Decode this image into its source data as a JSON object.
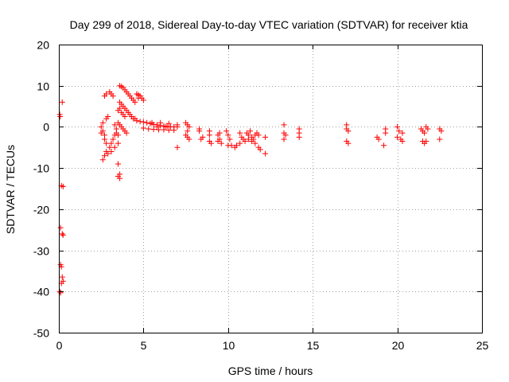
{
  "chart_data": {
    "type": "scatter",
    "title": "Day 299 of 2018, Sidereal Day-to-day VTEC variation (SDTVAR) for receiver ktia",
    "xlabel": "GPS time / hours",
    "ylabel": "SDTVAR / TECUs",
    "xlim": [
      0,
      25
    ],
    "ylim": [
      -50,
      20
    ],
    "xticks": [
      0,
      5,
      10,
      15,
      20,
      25
    ],
    "yticks": [
      -50,
      -40,
      -30,
      -20,
      -10,
      0,
      10,
      20
    ],
    "grid": true,
    "marker": "plus",
    "marker_color": "#ff0000",
    "points": [
      [
        0.05,
        3
      ],
      [
        0.08,
        2.5
      ],
      [
        0.2,
        6
      ],
      [
        0.15,
        -14.3
      ],
      [
        0.25,
        -14.5
      ],
      [
        0.1,
        -24.5
      ],
      [
        0.2,
        -26
      ],
      [
        0.25,
        -26.3
      ],
      [
        0.1,
        -33.5
      ],
      [
        0.15,
        -34
      ],
      [
        0.2,
        -36.5
      ],
      [
        0.25,
        -37.5
      ],
      [
        0.15,
        -38
      ],
      [
        0.05,
        -40
      ],
      [
        0.1,
        -40.3
      ],
      [
        2.5,
        0
      ],
      [
        2.6,
        -1
      ],
      [
        2.7,
        -2
      ],
      [
        2.5,
        -1.5
      ],
      [
        2.6,
        1
      ],
      [
        2.8,
        2
      ],
      [
        2.9,
        2.5
      ],
      [
        2.7,
        -3
      ],
      [
        2.8,
        -4
      ],
      [
        3.0,
        -5
      ],
      [
        3.1,
        -4
      ],
      [
        3.2,
        -3
      ],
      [
        3.3,
        -2
      ],
      [
        3.4,
        -1.5
      ],
      [
        3.5,
        -2
      ],
      [
        2.8,
        -6
      ],
      [
        2.7,
        -7
      ],
      [
        2.6,
        -8
      ],
      [
        2.9,
        -6.5
      ],
      [
        3.1,
        -6
      ],
      [
        3.3,
        -5
      ],
      [
        3.5,
        -4
      ],
      [
        2.7,
        7.5
      ],
      [
        2.8,
        8
      ],
      [
        3.0,
        8.5
      ],
      [
        3.1,
        8
      ],
      [
        3.2,
        7.5
      ],
      [
        3.6,
        10
      ],
      [
        3.7,
        9.8
      ],
      [
        3.8,
        9.5
      ],
      [
        3.9,
        9
      ],
      [
        4.0,
        8.5
      ],
      [
        4.1,
        8
      ],
      [
        4.2,
        7.5
      ],
      [
        4.3,
        7
      ],
      [
        4.4,
        6.5
      ],
      [
        4.5,
        6
      ],
      [
        4.6,
        8
      ],
      [
        4.7,
        7.8
      ],
      [
        4.8,
        7.5
      ],
      [
        4.9,
        7
      ],
      [
        5.0,
        6.5
      ],
      [
        4.7,
        7
      ],
      [
        3.6,
        6
      ],
      [
        3.7,
        5.5
      ],
      [
        3.8,
        5
      ],
      [
        3.9,
        4.5
      ],
      [
        4.0,
        4
      ],
      [
        4.1,
        3.5
      ],
      [
        4.2,
        3
      ],
      [
        4.3,
        2.5
      ],
      [
        4.4,
        2
      ],
      [
        4.5,
        2
      ],
      [
        3.5,
        4
      ],
      [
        3.6,
        4.5
      ],
      [
        3.7,
        3.5
      ],
      [
        3.8,
        3
      ],
      [
        3.9,
        2.5
      ],
      [
        3.5,
        1
      ],
      [
        3.6,
        0.5
      ],
      [
        3.7,
        0
      ],
      [
        3.8,
        -0.5
      ],
      [
        3.9,
        -1
      ],
      [
        4.0,
        -1.5
      ],
      [
        3.4,
        -0.5
      ],
      [
        3.3,
        0.5
      ],
      [
        3.5,
        -9
      ],
      [
        3.5,
        -12
      ],
      [
        3.6,
        -12.5
      ],
      [
        3.6,
        -11.5
      ],
      [
        4.6,
        1.5
      ],
      [
        4.8,
        1.3
      ],
      [
        5.0,
        1.2
      ],
      [
        5.2,
        1
      ],
      [
        5.4,
        0.8
      ],
      [
        5.6,
        0.6
      ],
      [
        5.8,
        0.5
      ],
      [
        6.0,
        0.3
      ],
      [
        6.2,
        0.2
      ],
      [
        6.4,
        0.1
      ],
      [
        6.6,
        0
      ],
      [
        6.8,
        0
      ],
      [
        7.0,
        0
      ],
      [
        5.0,
        -0.3
      ],
      [
        5.3,
        -0.5
      ],
      [
        5.6,
        -0.6
      ],
      [
        5.9,
        -0.7
      ],
      [
        6.2,
        -0.7
      ],
      [
        6.5,
        -0.8
      ],
      [
        6.8,
        -0.8
      ],
      [
        5.5,
        1
      ],
      [
        6.0,
        1
      ],
      [
        6.5,
        0.8
      ],
      [
        7.0,
        0.5
      ],
      [
        5.8,
        0
      ],
      [
        6.3,
        0
      ],
      [
        7.0,
        -5
      ],
      [
        7.5,
        1
      ],
      [
        7.6,
        0.5
      ],
      [
        7.7,
        0
      ],
      [
        7.6,
        -1
      ],
      [
        7.5,
        -2
      ],
      [
        7.7,
        -3
      ],
      [
        7.6,
        -2.5
      ],
      [
        8.3,
        -0.5
      ],
      [
        8.3,
        -1
      ],
      [
        8.4,
        -3
      ],
      [
        8.5,
        -2.5
      ],
      [
        8.9,
        -1
      ],
      [
        8.9,
        -2
      ],
      [
        9.0,
        -4
      ],
      [
        8.9,
        -3.5
      ],
      [
        9.4,
        -2
      ],
      [
        9.5,
        -3
      ],
      [
        9.4,
        -3.5
      ],
      [
        9.6,
        -4
      ],
      [
        9.5,
        -1.5
      ],
      [
        9.9,
        -1
      ],
      [
        10.0,
        -2
      ],
      [
        10.1,
        -3
      ],
      [
        10.0,
        -4.5
      ],
      [
        10.2,
        -4.5
      ],
      [
        10.4,
        -5
      ],
      [
        10.5,
        -4.5
      ],
      [
        10.7,
        -1.5
      ],
      [
        10.8,
        -2.5
      ],
      [
        10.7,
        -4
      ],
      [
        10.9,
        -3
      ],
      [
        11.0,
        -3.5
      ],
      [
        11.1,
        -1.5
      ],
      [
        11.2,
        -2
      ],
      [
        11.3,
        -1
      ],
      [
        11.4,
        -2.5
      ],
      [
        11.5,
        -3
      ],
      [
        11.6,
        -2
      ],
      [
        11.2,
        -3
      ],
      [
        11.4,
        -3.5
      ],
      [
        11.6,
        -4
      ],
      [
        11.8,
        -5
      ],
      [
        11.9,
        -5.5
      ],
      [
        11.7,
        -1.5
      ],
      [
        11.8,
        -2
      ],
      [
        12.2,
        -2.5
      ],
      [
        12.2,
        -6.5
      ],
      [
        13.3,
        0.5
      ],
      [
        13.3,
        -1.5
      ],
      [
        13.4,
        -2
      ],
      [
        13.3,
        -3
      ],
      [
        14.2,
        -0.5
      ],
      [
        14.2,
        -1.5
      ],
      [
        14.2,
        -2.5
      ],
      [
        17.0,
        0.5
      ],
      [
        17.0,
        -0.5
      ],
      [
        17.1,
        -1
      ],
      [
        17.0,
        -3.5
      ],
      [
        17.1,
        -4
      ],
      [
        18.8,
        -2.5
      ],
      [
        18.9,
        -3
      ],
      [
        19.3,
        -0.5
      ],
      [
        19.2,
        -4.5
      ],
      [
        19.3,
        -1.5
      ],
      [
        20.0,
        0
      ],
      [
        20.1,
        -1
      ],
      [
        20.0,
        -2.5
      ],
      [
        20.2,
        -3
      ],
      [
        20.3,
        -3.5
      ],
      [
        20.3,
        -1.5
      ],
      [
        21.4,
        -0.5
      ],
      [
        21.5,
        -1
      ],
      [
        21.6,
        -1.5
      ],
      [
        21.7,
        0
      ],
      [
        21.8,
        -0.5
      ],
      [
        21.5,
        -3.5
      ],
      [
        21.6,
        -4
      ],
      [
        21.7,
        -3.5
      ],
      [
        22.5,
        -0.5
      ],
      [
        22.6,
        -1
      ],
      [
        22.5,
        -3
      ]
    ]
  }
}
